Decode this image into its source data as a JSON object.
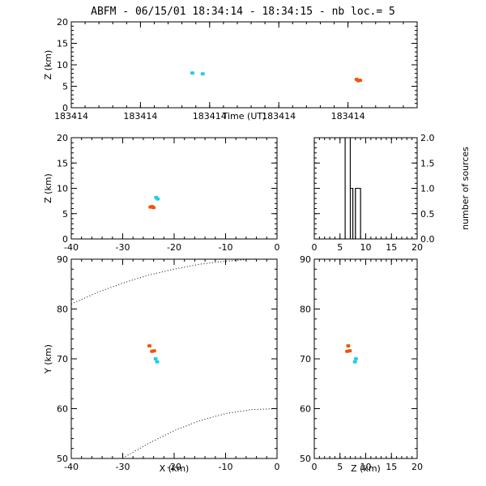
{
  "figure": {
    "title": "ABFM - 06/15/01 18:34:14 - 18:34:15 - nb loc.=       5"
  },
  "colors": {
    "cyan": "#22ccee",
    "orange": "#ee5511"
  },
  "chart_data": [
    {
      "id": "time-z",
      "type": "scatter",
      "xlabel": "Time (UT)",
      "ylabel": "Z (km)",
      "ylim": [
        0,
        20
      ],
      "yticks": [
        0,
        5,
        10,
        15,
        20
      ],
      "xlim": [
        0,
        1
      ],
      "xticks": [
        0,
        0.2,
        0.4,
        0.6,
        0.8
      ],
      "xticklabels": [
        "183414",
        "183414",
        "183414",
        "183414",
        "183414"
      ],
      "points": [
        {
          "x": 0.35,
          "y": 8.1,
          "color": "cyan"
        },
        {
          "x": 0.38,
          "y": 7.9,
          "color": "cyan"
        },
        {
          "x": 0.825,
          "y": 6.6,
          "color": "orange"
        },
        {
          "x": 0.83,
          "y": 6.3,
          "color": "orange"
        },
        {
          "x": 0.835,
          "y": 6.4,
          "color": "orange"
        }
      ]
    },
    {
      "id": "x-z",
      "type": "scatter",
      "xlabel": "",
      "ylabel": "Z (km)",
      "xlim": [
        -40,
        0
      ],
      "ylim": [
        0,
        20
      ],
      "xticks": [
        -40,
        -30,
        -20,
        -10,
        0
      ],
      "yticks": [
        0,
        5,
        10,
        15,
        20
      ],
      "points": [
        {
          "x": -23.5,
          "y": 8.2,
          "color": "cyan"
        },
        {
          "x": -23.2,
          "y": 7.9,
          "color": "cyan"
        },
        {
          "x": -24.3,
          "y": 6.4,
          "color": "orange"
        },
        {
          "x": -24.0,
          "y": 6.2,
          "color": "orange"
        },
        {
          "x": -24.6,
          "y": 6.3,
          "color": "orange"
        }
      ]
    },
    {
      "id": "histogram",
      "type": "bar",
      "xlabel": "",
      "ylabel": "number of sources",
      "xlim": [
        0,
        20
      ],
      "ylim": [
        0,
        2
      ],
      "xticks": [
        0,
        5,
        10,
        15,
        20
      ],
      "yticks": [
        0.0,
        0.5,
        1.0,
        1.5,
        2.0
      ],
      "yticklabels": [
        "0.0",
        "0.5",
        "1.0",
        "1.5",
        "2.0"
      ],
      "bins": [
        {
          "x0": 0,
          "x1": 5,
          "count": 0
        },
        {
          "x0": 5,
          "x1": 6,
          "count": 0
        },
        {
          "x0": 6,
          "x1": 7,
          "count": 2
        },
        {
          "x0": 7,
          "x1": 7.5,
          "count": 1
        },
        {
          "x0": 7.5,
          "x1": 8,
          "count": 0
        },
        {
          "x0": 8,
          "x1": 9,
          "count": 1
        },
        {
          "x0": 9,
          "x1": 20,
          "count": 0
        }
      ]
    },
    {
      "id": "x-y",
      "type": "scatter",
      "xlabel": "X (km)",
      "ylabel": "Y (km)",
      "xlim": [
        -40,
        0
      ],
      "ylim": [
        50,
        90
      ],
      "xticks": [
        -40,
        -30,
        -20,
        -10,
        0
      ],
      "yticks": [
        50,
        60,
        70,
        80,
        90
      ],
      "points": [
        {
          "x": -24.8,
          "y": 72.6,
          "color": "orange"
        },
        {
          "x": -24.3,
          "y": 71.5,
          "color": "orange"
        },
        {
          "x": -23.9,
          "y": 71.6,
          "color": "orange"
        },
        {
          "x": -23.6,
          "y": 70.0,
          "color": "cyan"
        },
        {
          "x": -23.3,
          "y": 69.4,
          "color": "cyan"
        }
      ],
      "curves": [
        {
          "points": [
            [
              -40,
              81
            ],
            [
              -35,
              83.3
            ],
            [
              -30,
              85.2
            ],
            [
              -25,
              86.8
            ],
            [
              -20,
              88.0
            ],
            [
              -15,
              89.0
            ],
            [
              -10,
              89.6
            ],
            [
              -5,
              90.0
            ],
            [
              -4,
              90.05
            ]
          ]
        },
        {
          "points": [
            [
              -30,
              50.1
            ],
            [
              -25,
              53.0
            ],
            [
              -20,
              55.6
            ],
            [
              -15,
              57.6
            ],
            [
              -10,
              59.0
            ],
            [
              -5,
              59.8
            ],
            [
              0,
              60.0
            ]
          ]
        }
      ]
    },
    {
      "id": "z-y",
      "type": "scatter",
      "xlabel": "Z (km)",
      "ylabel": "",
      "xlim": [
        0,
        20
      ],
      "ylim": [
        50,
        90
      ],
      "xticks": [
        0,
        5,
        10,
        15,
        20
      ],
      "yticks": [
        50,
        60,
        70,
        80,
        90
      ],
      "points": [
        {
          "x": 6.6,
          "y": 72.6,
          "color": "orange"
        },
        {
          "x": 6.4,
          "y": 71.5,
          "color": "orange"
        },
        {
          "x": 6.9,
          "y": 71.6,
          "color": "orange"
        },
        {
          "x": 8.1,
          "y": 70.0,
          "color": "cyan"
        },
        {
          "x": 7.9,
          "y": 69.4,
          "color": "cyan"
        }
      ]
    }
  ]
}
